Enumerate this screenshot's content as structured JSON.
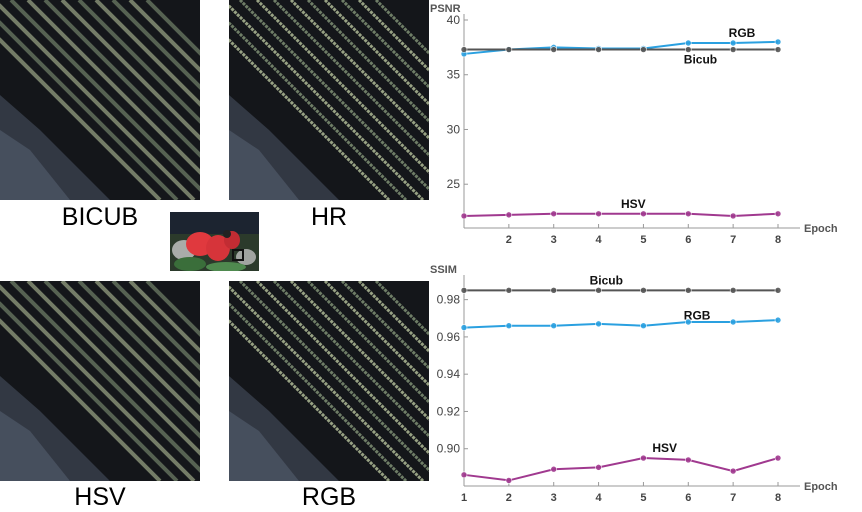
{
  "figure": {
    "patch_labels": {
      "bicub": "BICUB",
      "hr": "HR",
      "hsv": "HSV",
      "rgb": "RGB"
    },
    "colors": {
      "patch_bg": "#14161a",
      "stripe_a": "#8da080",
      "stripe_b": "#c3d0a6",
      "feather": "#4a5566",
      "thumb_red": "#e0393e",
      "thumb_green": "#3a6e3a",
      "thumb_box": "#111111"
    }
  },
  "chart_data": [
    {
      "type": "line",
      "ylabel": "PSNR",
      "xlabel": "Epoch",
      "xlim": [
        1,
        8
      ],
      "ylim": [
        21,
        40
      ],
      "x_ticks": [
        2,
        3,
        4,
        5,
        6,
        7,
        8
      ],
      "y_ticks": [
        25,
        30,
        35,
        40
      ],
      "x": [
        1,
        2,
        3,
        4,
        5,
        6,
        7,
        8
      ],
      "series": [
        {
          "name": "RGB",
          "color": "#2aa0e0",
          "values": [
            36.9,
            37.3,
            37.5,
            37.4,
            37.4,
            37.9,
            37.9,
            38.0
          ]
        },
        {
          "name": "Bicub",
          "color": "#555555",
          "values": [
            37.3,
            37.3,
            37.3,
            37.3,
            37.3,
            37.3,
            37.3,
            37.3
          ]
        },
        {
          "name": "HSV",
          "color": "#a0398f",
          "values": [
            22.1,
            22.2,
            22.3,
            22.3,
            22.3,
            22.3,
            22.1,
            22.3
          ]
        }
      ]
    },
    {
      "type": "line",
      "ylabel": "SSIM",
      "xlabel": "Epoch",
      "xlim": [
        1,
        8
      ],
      "ylim": [
        0.88,
        0.99
      ],
      "x_ticks": [
        1,
        2,
        3,
        4,
        5,
        6,
        7,
        8
      ],
      "y_ticks": [
        0.9,
        0.92,
        0.94,
        0.96,
        0.98
      ],
      "x": [
        1,
        2,
        3,
        4,
        5,
        6,
        7,
        8
      ],
      "series": [
        {
          "name": "Bicub",
          "color": "#555555",
          "values": [
            0.985,
            0.985,
            0.985,
            0.985,
            0.985,
            0.985,
            0.985,
            0.985
          ]
        },
        {
          "name": "RGB",
          "color": "#2aa0e0",
          "values": [
            0.965,
            0.966,
            0.966,
            0.967,
            0.966,
            0.968,
            0.968,
            0.969
          ]
        },
        {
          "name": "HSV",
          "color": "#a0398f",
          "values": [
            0.886,
            0.883,
            0.889,
            0.89,
            0.895,
            0.894,
            0.888,
            0.895
          ]
        }
      ]
    }
  ]
}
